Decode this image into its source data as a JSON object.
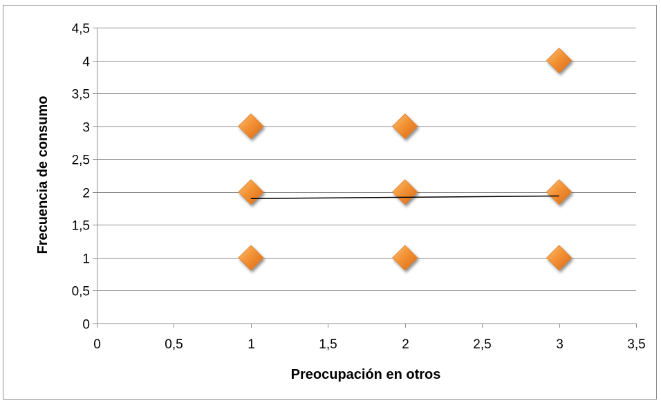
{
  "chart_data": {
    "type": "scatter",
    "xlabel": "Preocupación en otros",
    "ylabel": "Frecuencia de consumo",
    "xlim": [
      0,
      3.5
    ],
    "ylim": [
      0,
      4.5
    ],
    "x_ticks": [
      0,
      0.5,
      1,
      1.5,
      2,
      2.5,
      3,
      3.5
    ],
    "y_ticks": [
      0,
      0.5,
      1,
      1.5,
      2,
      2.5,
      3,
      3.5,
      4,
      4.5
    ],
    "x_tick_labels": [
      "0",
      "0,5",
      "1",
      "1,5",
      "2",
      "2,5",
      "3",
      "3,5"
    ],
    "y_tick_labels": [
      "0",
      "0,5",
      "1",
      "1,5",
      "2",
      "2,5",
      "3",
      "3,5",
      "4",
      "4,5"
    ],
    "grid": "horizontal",
    "legend": "none",
    "series": [
      {
        "points": [
          {
            "x": 1,
            "y": 3
          },
          {
            "x": 1,
            "y": 2
          },
          {
            "x": 1,
            "y": 1
          },
          {
            "x": 2,
            "y": 3
          },
          {
            "x": 2,
            "y": 2
          },
          {
            "x": 2,
            "y": 1
          },
          {
            "x": 3,
            "y": 4
          },
          {
            "x": 3,
            "y": 2
          },
          {
            "x": 3,
            "y": 1
          }
        ],
        "marker": "diamond",
        "color": "#F28A2E"
      }
    ],
    "trendline": {
      "type": "linear",
      "x": [
        1,
        3
      ],
      "y": [
        1.9,
        1.94
      ],
      "color": "#000000"
    }
  }
}
